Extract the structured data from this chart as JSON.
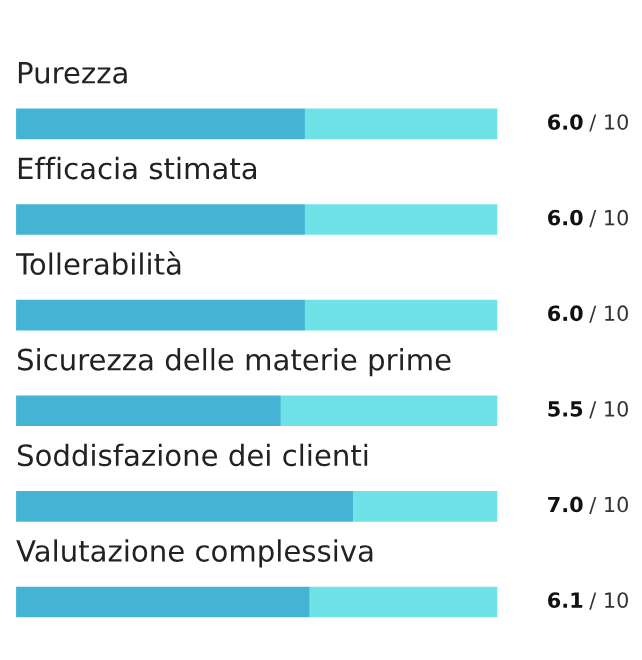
{
  "chart_data": {
    "type": "bar",
    "orientation": "horizontal",
    "stacked": true,
    "categories": [
      "Purezza",
      "Efficacia stimata",
      "Tollerabilità",
      "Sicurezza delle materie prime",
      "Soddisfazione dei clienti",
      "Valutazione complessiva"
    ],
    "series": [
      {
        "color": "#45b4d4",
        "values": [
          6.0,
          6.0,
          6.0,
          5.5,
          7.0,
          6.1
        ],
        "value_labels": [
          "6.0",
          "6.0",
          "6.0",
          "5.5",
          "7.0",
          "6.1"
        ]
      },
      {
        "color": "#6ee2e6",
        "values": [
          4.0,
          4.0,
          4.0,
          4.5,
          3.0,
          3.9
        ]
      }
    ],
    "annotations": [
      "/ 10",
      "/ 10",
      "/ 10",
      "/ 10",
      "/ 10",
      "/ 10"
    ],
    "xlim": [
      0,
      10
    ]
  }
}
